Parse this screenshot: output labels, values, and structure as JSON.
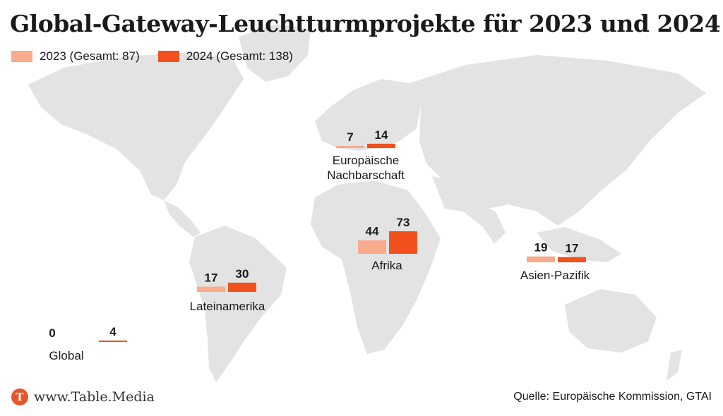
{
  "title": "Global-Gateway-Leuchtturmprojekte für 2023 und 2024",
  "colors": {
    "y2023": "#f8ab8d",
    "y2024": "#f2501c",
    "land": "#e3e3e3",
    "brand": "#e8542a"
  },
  "legend": [
    {
      "label": "2023 (Gesamt: 87)",
      "color": "#f8ab8d"
    },
    {
      "label": "2024 (Gesamt: 138)",
      "color": "#f2501c"
    }
  ],
  "chart_data": {
    "type": "bar",
    "series": [
      {
        "name": "2023 (Gesamt: 87)",
        "values": [
          0,
          17,
          7,
          44,
          19
        ]
      },
      {
        "name": "2024 (Gesamt: 138)",
        "values": [
          4,
          30,
          14,
          73,
          17
        ]
      }
    ],
    "categories": [
      "Global",
      "Lateinamerika",
      "Europäische Nachbarschaft",
      "Afrika",
      "Asien-Pazifik"
    ],
    "regions": [
      {
        "label_lines": [
          "Global"
        ],
        "v2023": 0,
        "v2024": 4
      },
      {
        "label_lines": [
          "Lateinamerika"
        ],
        "v2023": 17,
        "v2024": 30
      },
      {
        "label_lines": [
          "Europäische",
          "Nachbarschaft"
        ],
        "v2023": 7,
        "v2024": 14
      },
      {
        "label_lines": [
          "Afrika"
        ],
        "v2023": 44,
        "v2024": 73
      },
      {
        "label_lines": [
          "Asien-Pazifik"
        ],
        "v2023": 19,
        "v2024": 17
      }
    ]
  },
  "footer": {
    "logo_letter": "T",
    "brand": "www.Table.Media",
    "source": "Quelle: Europäische Kommission, GTAI"
  }
}
